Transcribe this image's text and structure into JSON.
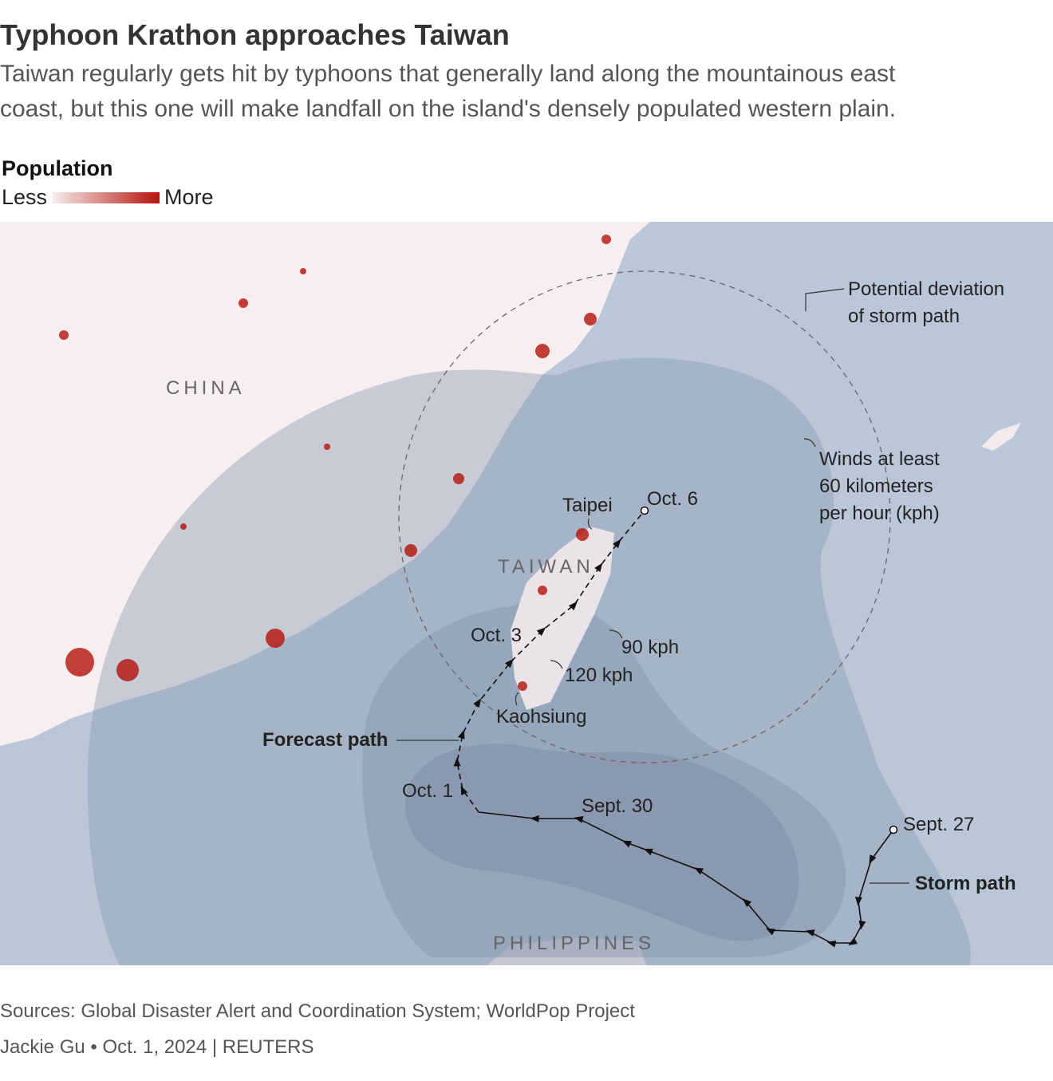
{
  "header": {
    "title": "Typhoon Krathon approaches Taiwan",
    "subtitle": [
      "Taiwan regularly gets hit by typhoons that generally land along the mountainous east",
      "coast, but this one will make landfall on the island's densely populated western plain."
    ]
  },
  "legend": {
    "title": "Population",
    "low": "Less",
    "high": "More"
  },
  "map": {
    "regions": {
      "china": "CHINA",
      "taiwan": "TAIWAN",
      "philippines": "PHILIPPINES"
    },
    "cities": {
      "taipei": "Taipei",
      "kaohsiung": "Kaohsiung"
    },
    "dates": {
      "oct6": "Oct. 6",
      "oct3": "Oct. 3",
      "oct1": "Oct. 1",
      "sept30": "Sept. 30",
      "sept27": "Sept. 27"
    },
    "wind_zones": {
      "kph90": "90 kph",
      "kph120": "120 kph",
      "kph60": [
        "Winds at least",
        "60 kilometers",
        "per hour (kph)"
      ]
    },
    "paths": {
      "forecast": "Forecast path",
      "storm": "Storm path",
      "deviation": [
        "Potential deviation",
        "of storm path"
      ]
    }
  },
  "footer": {
    "sources": "Sources: Global Disaster Alert and Coordination System; WorldPop Project",
    "credit": "Jackie Gu • Oct. 1, 2024 | REUTERS"
  }
}
